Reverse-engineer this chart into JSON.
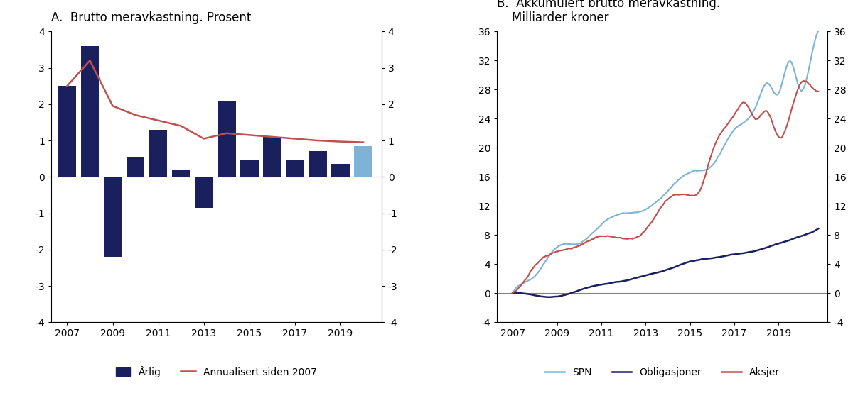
{
  "title_a": "A.  Brutto meravkastning. Prosent",
  "title_b": "B.  Akkumulert brutto meravkastning.\n    Milliarder kroner",
  "bar_years": [
    2007,
    2008,
    2009,
    2010,
    2011,
    2012,
    2013,
    2014,
    2015,
    2016,
    2017,
    2018,
    2019,
    2020
  ],
  "bar_values": [
    2.5,
    3.6,
    -2.2,
    0.55,
    1.3,
    0.2,
    -0.85,
    2.1,
    0.45,
    1.1,
    0.45,
    0.7,
    0.35,
    0.85
  ],
  "bar_colors": [
    "#1a1f5e",
    "#1a1f5e",
    "#1a1f5e",
    "#1a1f5e",
    "#1a1f5e",
    "#1a1f5e",
    "#1a1f5e",
    "#1a1f5e",
    "#1a1f5e",
    "#1a1f5e",
    "#1a1f5e",
    "#1a1f5e",
    "#1a1f5e",
    "#7eb3d8"
  ],
  "annualized_x": [
    2007,
    2008,
    2009,
    2010,
    2011,
    2012,
    2013,
    2014,
    2015,
    2016,
    2017,
    2018,
    2019,
    2020
  ],
  "annualized_y": [
    2.5,
    3.2,
    1.95,
    1.7,
    1.55,
    1.4,
    1.05,
    1.2,
    1.15,
    1.1,
    1.05,
    1.0,
    0.97,
    0.95
  ],
  "annualized_color": "#c0504d",
  "ylim_a": [
    -4,
    4
  ],
  "yticks_a": [
    -4,
    -3,
    -2,
    -1,
    0,
    1,
    2,
    3,
    4
  ],
  "xticks_a": [
    2007,
    2009,
    2011,
    2013,
    2015,
    2017,
    2019
  ],
  "bar_dark_color": "#1a1f5e",
  "bar_light_color": "#7eb3d8",
  "legend_a_labels": [
    "Årlig",
    "Annualisert siden 2007"
  ],
  "spn_color": "#7eb3d8",
  "obl_color": "#1a1f5e",
  "aksjer_color": "#c0504d",
  "ylim_b": [
    -4,
    36
  ],
  "yticks_b": [
    -4,
    0,
    4,
    8,
    12,
    16,
    20,
    24,
    28,
    32,
    36
  ],
  "xticks_b": [
    2007,
    2009,
    2011,
    2013,
    2015,
    2017,
    2019
  ],
  "legend_b_labels": [
    "SPN",
    "Obligasjoner",
    "Aksjer"
  ]
}
